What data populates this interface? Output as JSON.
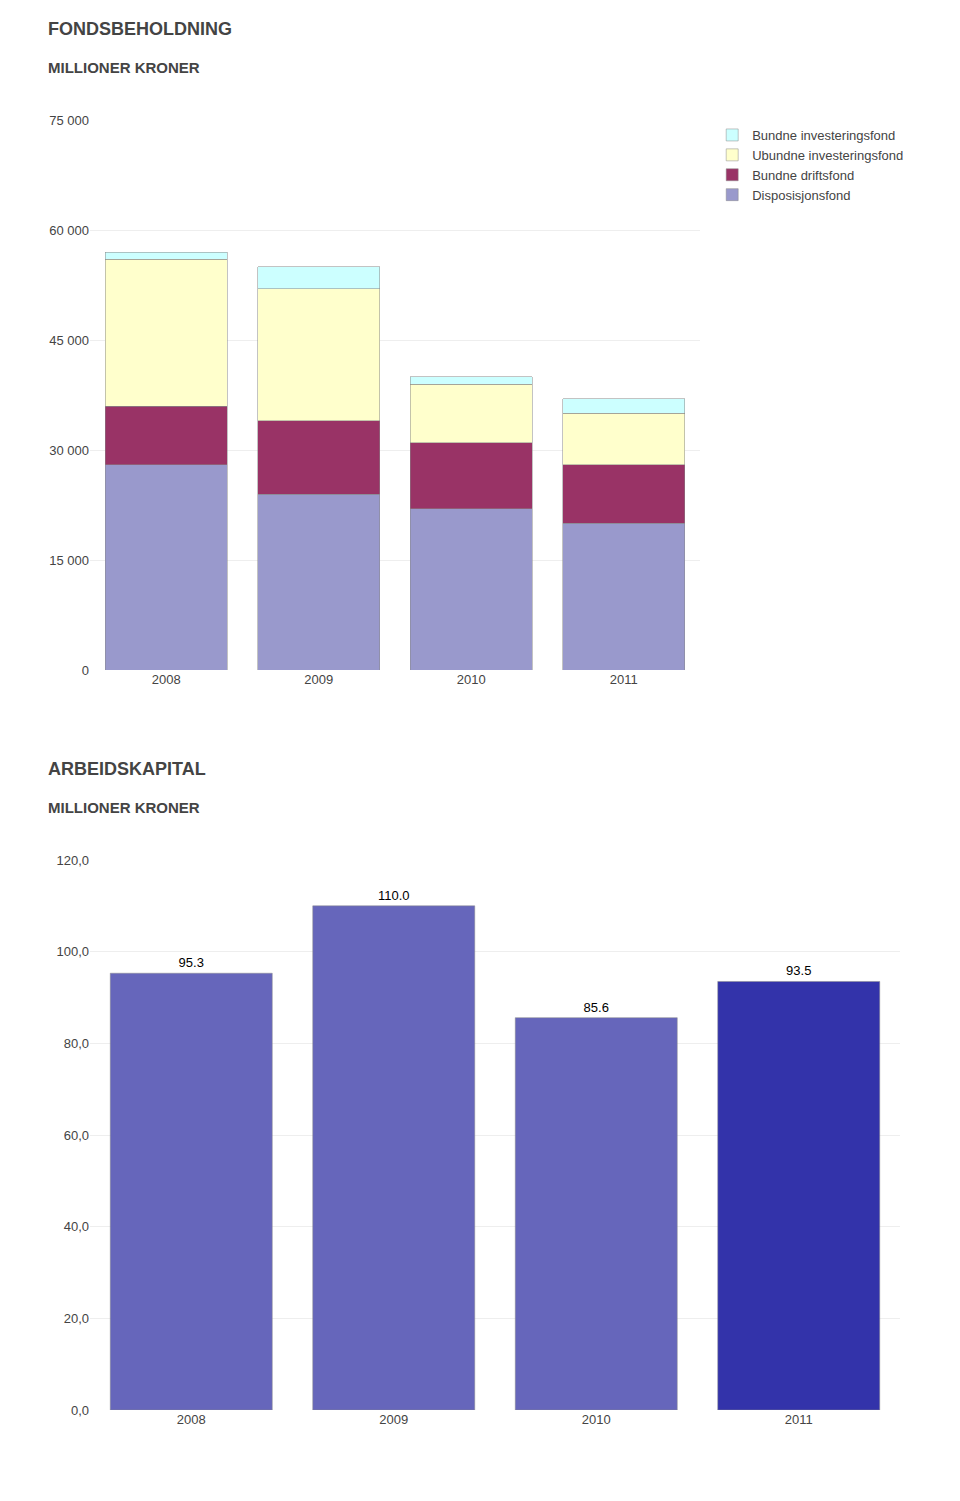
{
  "chart_data": [
    {
      "type": "bar",
      "title": "FONDSBEHOLDNING",
      "subtitle": "MILLIONER KRONER",
      "categories": [
        "2008",
        "2009",
        "2010",
        "2011"
      ],
      "stacked": true,
      "series": [
        {
          "name": "Disposisjonsfond",
          "color": "#9999cc",
          "values": [
            28000,
            24000,
            22000,
            20000
          ]
        },
        {
          "name": "Bundne driftsfond",
          "color": "#993366",
          "values": [
            8000,
            10000,
            9000,
            8000
          ]
        },
        {
          "name": "Ubundne investeringsfond",
          "color": "#ffffcc",
          "values": [
            20000,
            18000,
            8000,
            7000
          ]
        },
        {
          "name": "Bundne investeringsfond",
          "color": "#ccffff",
          "values": [
            1000,
            3000,
            1000,
            2000
          ]
        }
      ],
      "ylim": [
        0,
        75000
      ],
      "yticks": [
        0,
        {
          "value": 15000,
          "label": "15 000"
        },
        {
          "value": 30000,
          "label": "30 000"
        },
        {
          "value": 45000,
          "label": "45 000"
        },
        {
          "value": 60000,
          "label": "60 000"
        },
        {
          "value": 75000,
          "label": "75 000"
        }
      ],
      "grid": true,
      "legend": "upper right"
    },
    {
      "type": "bar",
      "title": "ARBEIDSKAPITAL",
      "subtitle": "MILLIONER KRONER",
      "categories": [
        "2008",
        "2009",
        "2010",
        "2011"
      ],
      "values": [
        95.3,
        110.0,
        85.6,
        93.5
      ],
      "value_labels": [
        "95.3",
        "110.0",
        "85.6",
        "93.5"
      ],
      "data_labels": true,
      "colors": [
        "#6666bb",
        "#6666bb",
        "#6666bb",
        "#3333aa"
      ],
      "ylim": [
        0,
        120
      ],
      "yticks": [
        {
          "value": 0,
          "label": "0,0"
        },
        {
          "value": 20,
          "label": "20,0"
        },
        {
          "value": 40,
          "label": "40,0"
        },
        {
          "value": 60,
          "label": "60,0"
        },
        {
          "value": 80,
          "label": "80,0"
        },
        {
          "value": 100,
          "label": "100,0"
        },
        {
          "value": 120,
          "label": "120,0"
        }
      ],
      "grid": true
    }
  ]
}
